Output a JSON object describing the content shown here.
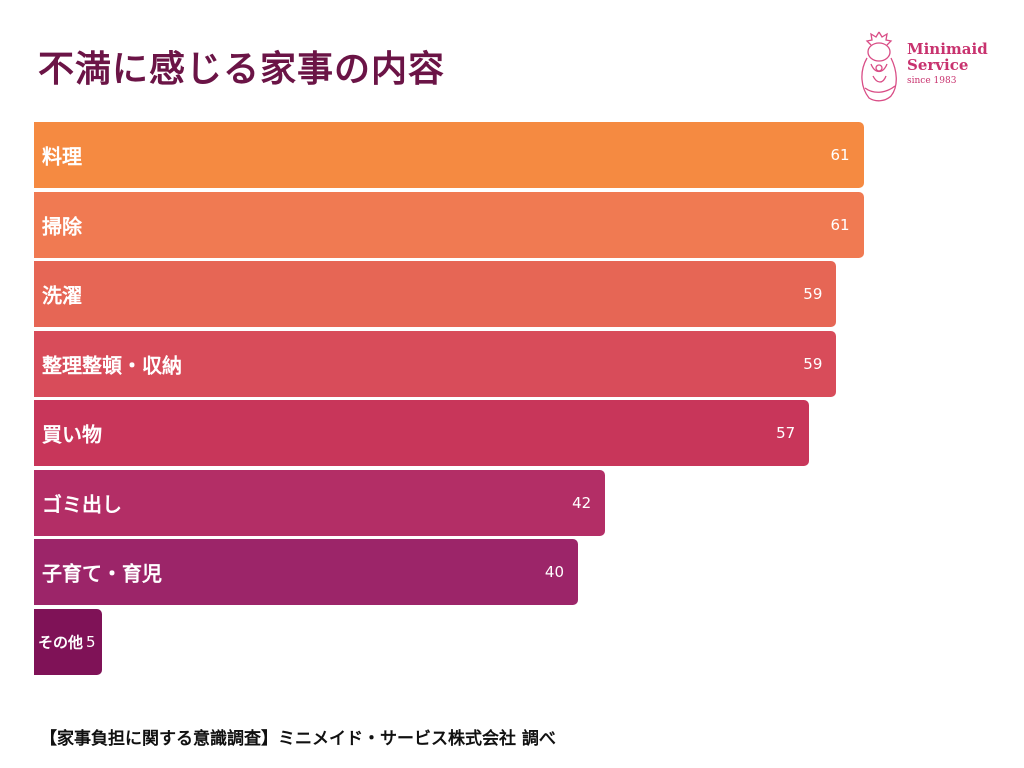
{
  "chart_data": {
    "type": "bar",
    "orientation": "horizontal",
    "title": "不満に感じる家事の内容",
    "categories": [
      "料理",
      "掃除",
      "洗濯",
      "整理整頓・収納",
      "買い物",
      "ゴミ出し",
      "子育て・育児",
      "その他"
    ],
    "values": [
      61,
      61,
      59,
      59,
      57,
      42,
      40,
      5
    ],
    "colors": [
      "#f58a41",
      "#f07a52",
      "#e66655",
      "#d84c5a",
      "#c8365a",
      "#b32e66",
      "#9c2569",
      "#7f1257"
    ],
    "grid": false,
    "legend": "none"
  },
  "logo": {
    "name_line1": "Minimaid",
    "name_line2": "Service",
    "since": "since 1983",
    "color": "#c8326e"
  },
  "source": "【家事負担に関する意識調査】ミニメイド・サービス株式会社 調べ"
}
